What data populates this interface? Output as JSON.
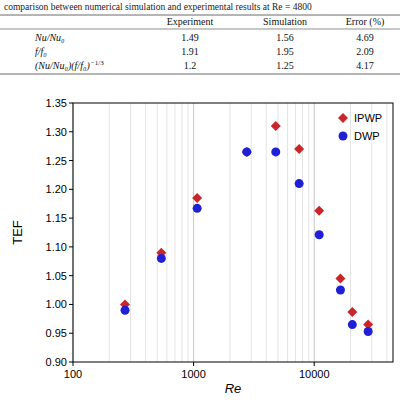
{
  "caption": "comparison between numerical simulation and experimental results at Re = 4800",
  "table": {
    "columns": [
      "Experiment",
      "Simulation",
      "Error (%)"
    ],
    "rows": [
      {
        "label": "Nu/Nu₀",
        "values": [
          1.49,
          1.56,
          4.69
        ]
      },
      {
        "label": "f/f₀",
        "values": [
          1.91,
          1.95,
          2.09
        ]
      },
      {
        "label": "(Nu/Nu₀)(f/f₀)",
        "label_sup": "−1/3",
        "values": [
          1.2,
          1.25,
          4.17
        ]
      }
    ]
  },
  "chart_data": {
    "type": "scatter",
    "x_label": "Re",
    "y_label": "TEF",
    "log": "x",
    "grid": true,
    "legend": "upper right",
    "xlim": [
      100,
      45000
    ],
    "xticks": [
      100,
      1000,
      10000
    ],
    "ylim": [
      0.9,
      1.35
    ],
    "yticks": [
      {
        "value": 0.9,
        "label": "0.90"
      },
      0.95,
      {
        "value": 1.0,
        "label": "1.00"
      },
      1.05,
      {
        "value": 1.1,
        "label": "1.10"
      },
      1.15,
      {
        "value": 1.2,
        "label": "1.20"
      },
      1.25,
      {
        "value": 1.3,
        "label": "1.30"
      },
      1.35
    ],
    "x": [
      270,
      540,
      1070,
      2760,
      4800,
      7500,
      11000,
      16500,
      20700,
      28000
    ],
    "series": [
      {
        "name": "IPWP",
        "color": "#c8262b",
        "marker": "diamond",
        "values": [
          1.0,
          1.09,
          1.185,
          1.265,
          1.31,
          1.27,
          1.163,
          1.045,
          0.987,
          0.965
        ]
      },
      {
        "name": "DWP",
        "color": "#1f1fd6",
        "marker": "circle",
        "values": [
          0.99,
          1.08,
          1.167,
          1.265,
          1.265,
          1.21,
          1.121,
          1.025,
          0.965,
          0.953
        ]
      }
    ]
  }
}
